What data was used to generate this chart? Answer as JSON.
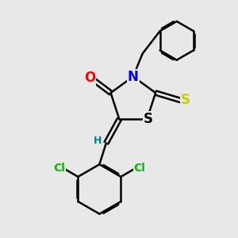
{
  "bg_color": "#e8e8e8",
  "bond_color": "#000000",
  "bond_width": 1.8,
  "atom_colors": {
    "O": "#ff0000",
    "N": "#0000ff",
    "S_thioxo": "#cccc00",
    "S_ring": "#000000",
    "Cl": "#00bb00",
    "H": "#008080",
    "C": "#000000"
  }
}
